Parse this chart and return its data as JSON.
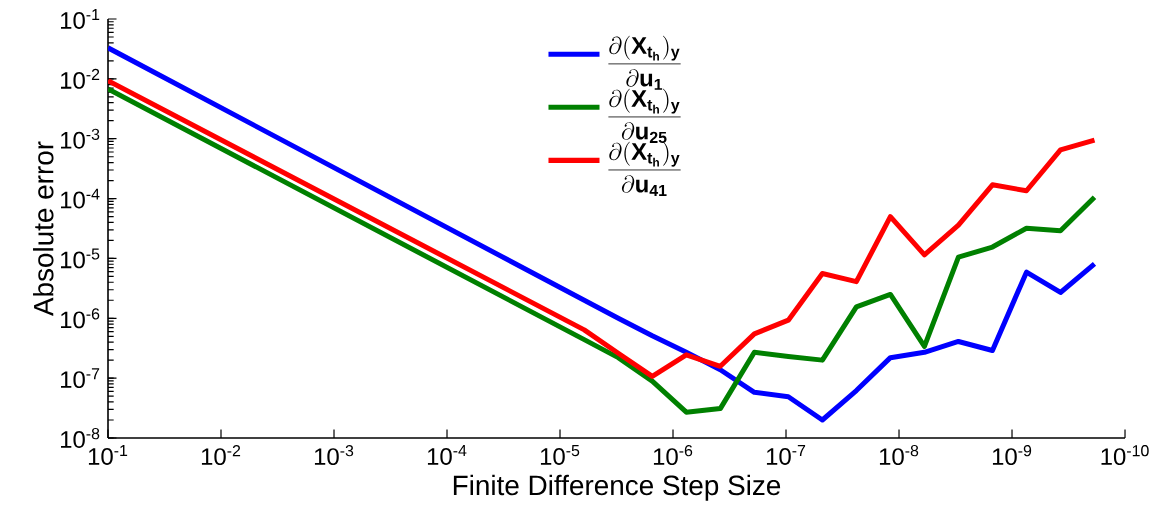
{
  "chart_data": {
    "type": "line",
    "xlabel": "Finite Difference Step Size",
    "ylabel": "Absolute error",
    "log": "xy",
    "grid": false,
    "legend": "top",
    "line_style": "solid",
    "xlim": [
      0.1,
      1e-10
    ],
    "ylim": [
      1e-08,
      0.1
    ],
    "xticks": [
      {
        "value": 0.1,
        "label": "10$^{-1}$"
      },
      {
        "value": 0.01,
        "label": "10$^{-2}$"
      },
      {
        "value": 0.001,
        "label": "10$^{-3}$"
      },
      {
        "value": 0.0001,
        "label": "10$^{-4}$"
      },
      {
        "value": 1e-05,
        "label": "10$^{-5}$"
      },
      {
        "value": 1e-06,
        "label": "10$^{-6}$"
      },
      {
        "value": 1e-07,
        "label": "10$^{-7}$"
      },
      {
        "value": 1e-08,
        "label": "10$^{-8}$"
      },
      {
        "value": 1e-09,
        "label": "10$^{-9}$"
      },
      {
        "value": 1e-10,
        "label": "10$^{-10}$"
      }
    ],
    "yticks": [
      {
        "value": 1e-08,
        "label": "10$^{-8}$"
      },
      {
        "value": 1e-07,
        "label": "10$^{-7}$"
      },
      {
        "value": 1e-06,
        "label": "10$^{-6}$"
      },
      {
        "value": 1e-05,
        "label": "10$^{-5}$"
      },
      {
        "value": 0.0001,
        "label": "10$^{-4}$"
      },
      {
        "value": 0.001,
        "label": "10$^{-3}$"
      },
      {
        "value": 0.01,
        "label": "10$^{-2}$"
      },
      {
        "value": 0.1,
        "label": "10$^{-1}$"
      }
    ],
    "x": [
      0.1,
      6.1035e-06,
      3.0518e-06,
      1.5259e-06,
      7.629e-07,
      3.815e-07,
      1.907e-07,
      9.537e-08,
      4.768e-08,
      2.384e-08,
      1.192e-08,
      5.96e-09,
      2.98e-09,
      1.49e-09,
      7.45e-10,
      3.725e-10,
      1.863e-10
    ],
    "series": [
      {
        "name": "\\frac{\\partial(\\mathbf{X}_{\\mathbf{t}_\\mathbf{h}})_\\mathbf{y}}{\\partial \\mathbf{u}_\\mathbf{1}}",
        "color": "#0000ff",
        "values": [
          0.033,
          2e-06,
          1e-06,
          5.1e-07,
          2.7e-07,
          1.38e-07,
          5.8e-08,
          4.9e-08,
          2e-08,
          6.2e-08,
          2.2e-07,
          2.7e-07,
          4.1e-07,
          2.9e-07,
          5.9e-06,
          2.7e-06,
          8.1e-06
        ]
      },
      {
        "name": "\\frac{\\partial(\\mathbf{X}_{\\mathbf{t}_\\mathbf{h}})_\\mathbf{y}}{\\partial \\mathbf{u}_\\mathbf{25}}",
        "color": "#008000",
        "values": [
          0.0068,
          4.4e-07,
          2.2e-07,
          8.9e-08,
          2.7e-08,
          3.1e-08,
          2.7e-07,
          2.3e-07,
          2e-07,
          1.55e-06,
          2.5e-06,
          3.4e-07,
          1.05e-05,
          1.55e-05,
          3.2e-05,
          2.9e-05,
          0.000105
        ]
      },
      {
        "name": "\\frac{\\partial(\\mathbf{X}_{\\mathbf{t}_\\mathbf{h}})_\\mathbf{y}}{\\partial \\mathbf{u}_\\mathbf{41}}",
        "color": "#ff0000",
        "values": [
          0.0093,
          6.4e-07,
          2.6e-07,
          1.07e-07,
          2.45e-07,
          1.58e-07,
          5.5e-07,
          9.3e-07,
          5.6e-06,
          4.1e-06,
          5e-05,
          1.15e-05,
          3.6e-05,
          0.00017,
          0.000135,
          0.00065,
          0.00095
        ]
      }
    ]
  }
}
